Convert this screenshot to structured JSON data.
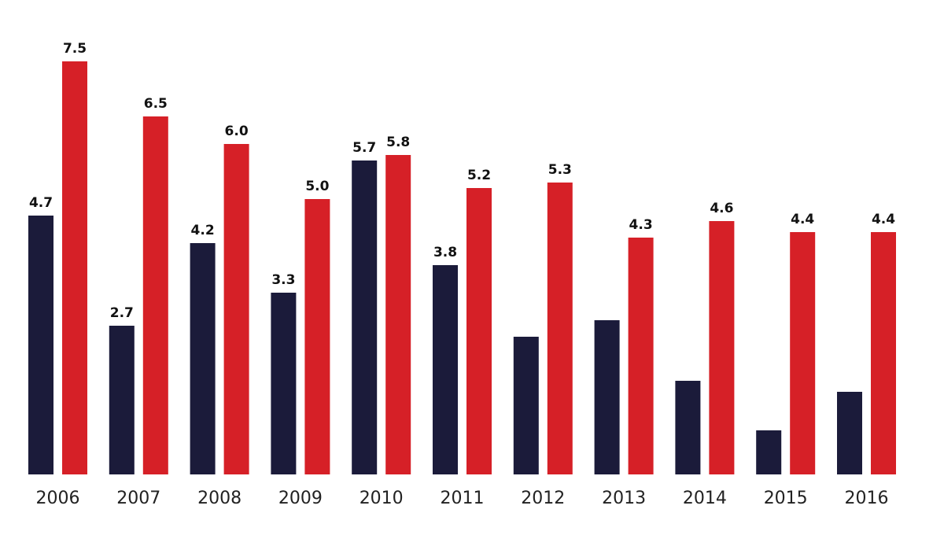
{
  "chart_data": {
    "type": "bar",
    "categories": [
      "2006",
      "2007",
      "2008",
      "2009",
      "2010",
      "2011",
      "2012",
      "2013",
      "2014",
      "2015",
      "2016"
    ],
    "series": [
      {
        "color": "#1b1b3a",
        "values": [
          4.7,
          2.7,
          4.2,
          3.3,
          5.7,
          3.8,
          2.5,
          2.8,
          1.7,
          0.8,
          1.5
        ],
        "labels": [
          "4.7",
          "2.7",
          "4.2",
          "3.3",
          "5.7",
          "3.8",
          "",
          "",
          "",
          "",
          ""
        ]
      },
      {
        "color": "#d62027",
        "values": [
          7.5,
          6.5,
          6.0,
          5.0,
          5.8,
          5.2,
          5.3,
          4.3,
          4.6,
          4.4,
          4.4
        ],
        "labels": [
          "7.5",
          "6.5",
          "6.0",
          "5.0",
          "5.8",
          "5.2",
          "5.3",
          "4.3",
          "4.6",
          "4.4",
          "4.4"
        ]
      }
    ],
    "ylim": [
      0,
      8
    ],
    "grid": false,
    "legend": "none"
  }
}
